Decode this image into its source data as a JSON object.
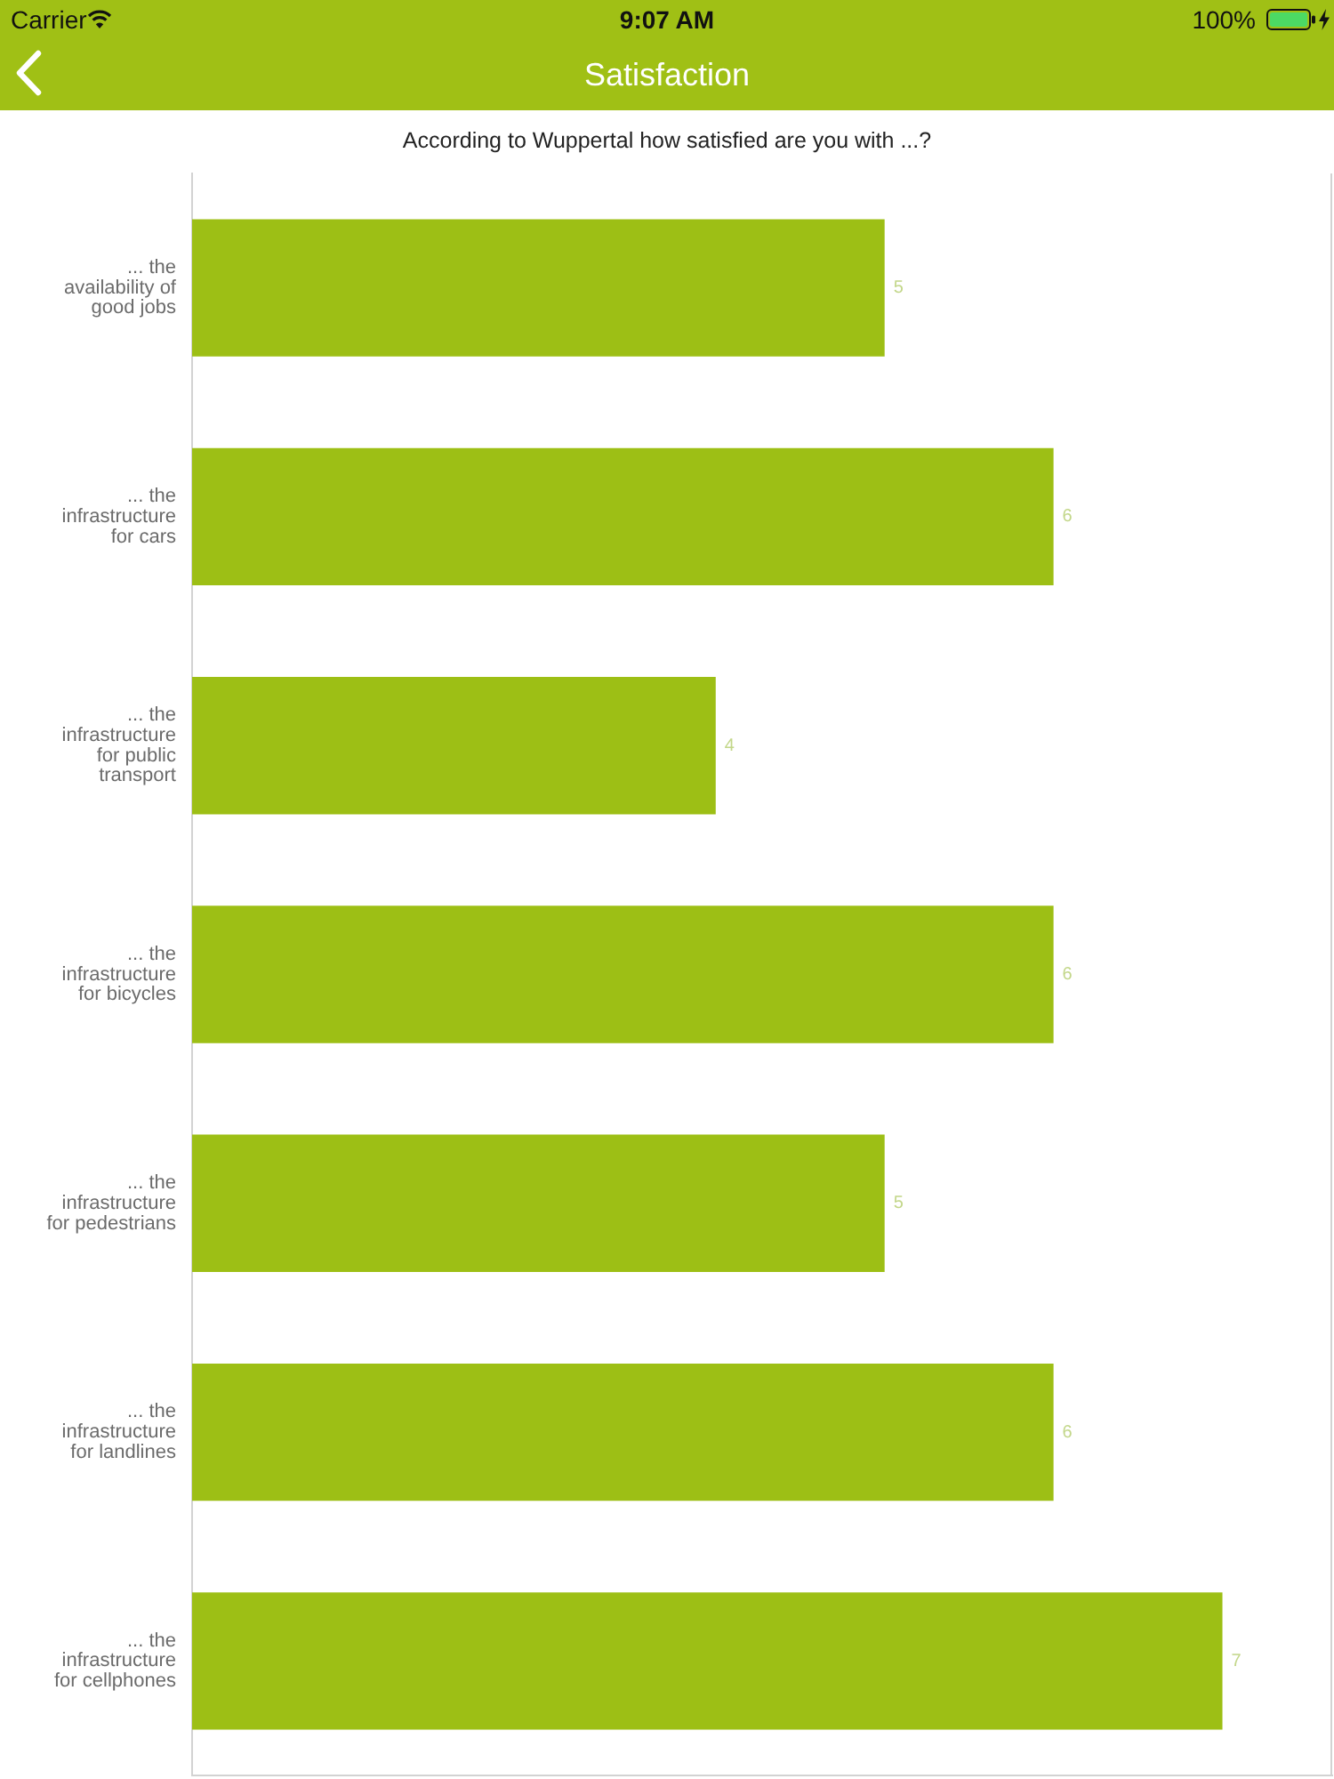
{
  "chart_data": {
    "type": "bar",
    "orientation": "horizontal",
    "title": "Satisfaction",
    "subtitle": "According to Wuppertal how satisfied are you with ...?",
    "categories": [
      "... the availability of good jobs",
      "... the infrastructure for cars",
      "... the infrastructure for public transport",
      "... the infrastructure for bicycles",
      "... the infrastructure for pedestrians",
      "... the infrastructure for landlines",
      "... the infrastructure for cellphones"
    ],
    "values": [
      5,
      6,
      4,
      6,
      5,
      6,
      7
    ],
    "color": "#9dbf15",
    "xlim": [
      0.9,
      7.65
    ],
    "data_labels": true,
    "tick_labels": "y",
    "annotations": [
      "Carrier",
      "9:07 AM",
      "100%"
    ]
  }
}
